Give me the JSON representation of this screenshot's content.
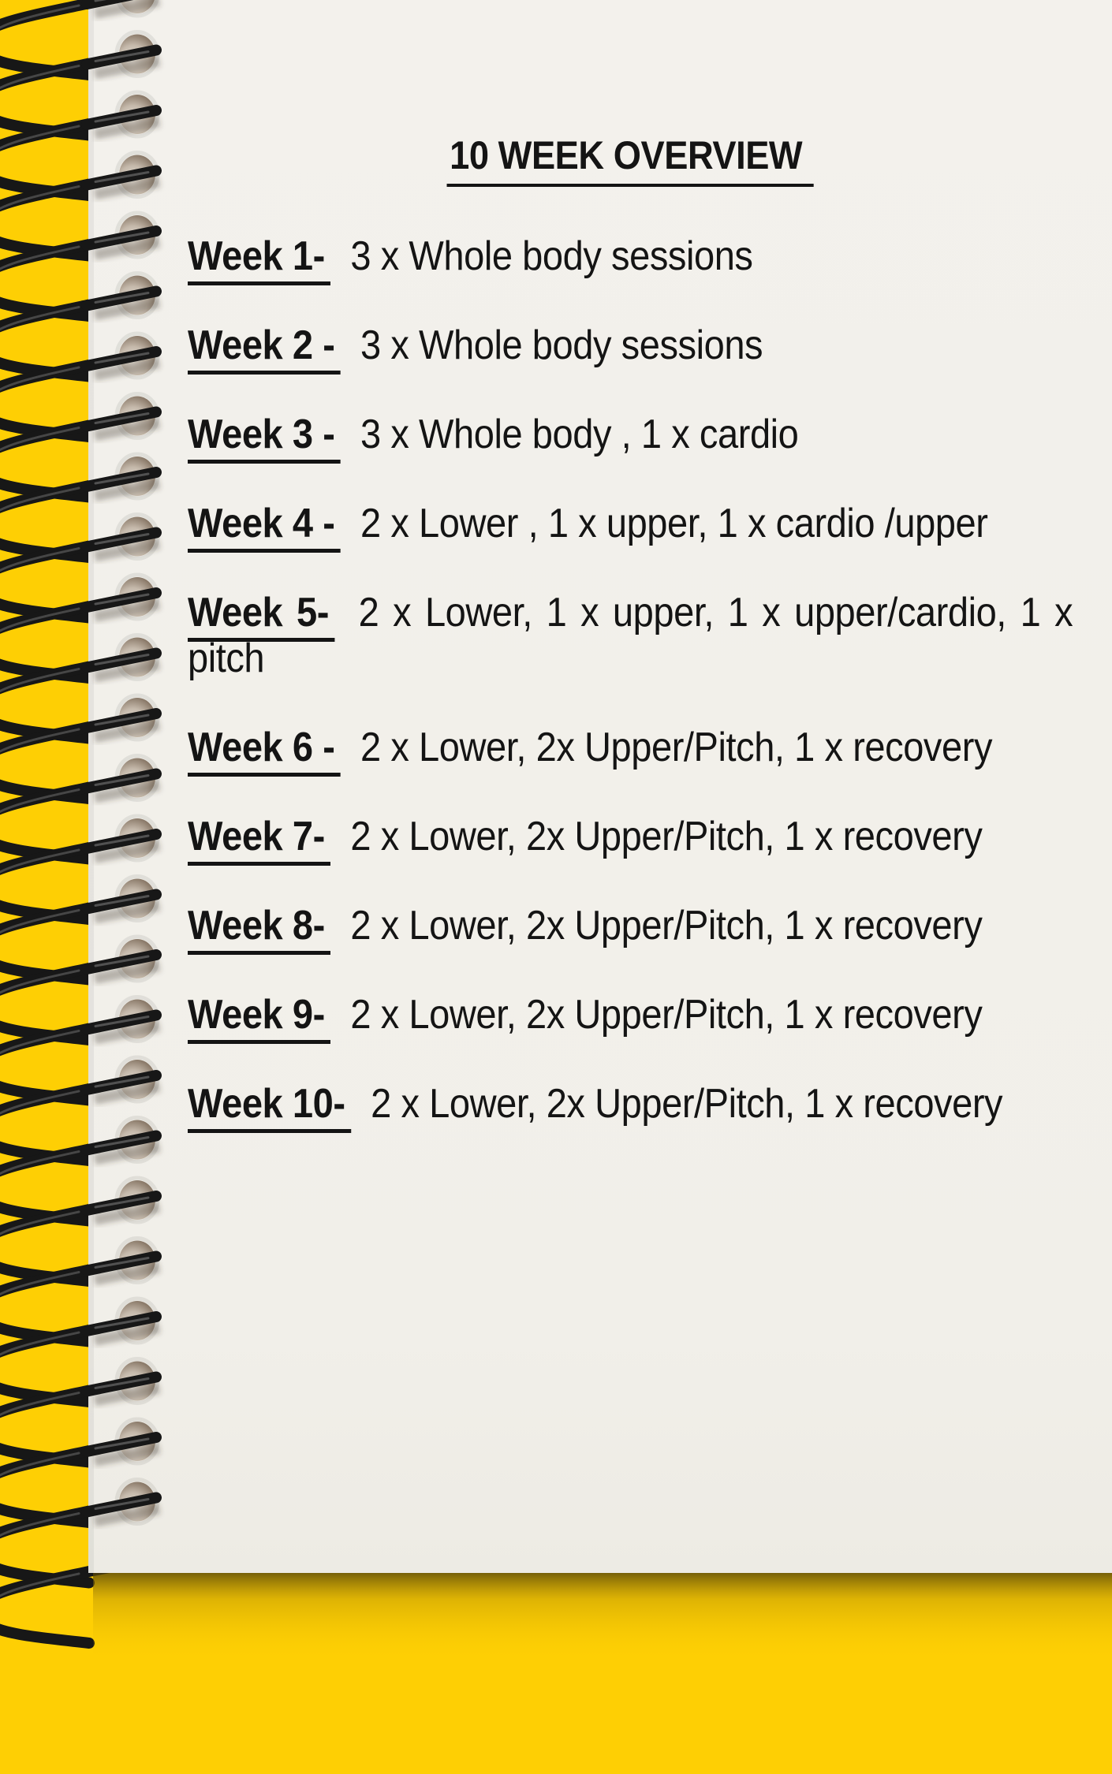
{
  "title": "10 WEEK OVERVIEW",
  "weeks": [
    {
      "label": "Week 1-",
      "desc": "3 x Whole body sessions"
    },
    {
      "label": "Week 2 -",
      "desc": "3 x Whole body sessions"
    },
    {
      "label": "Week 3 -",
      "desc": "3 x Whole body , 1 x cardio"
    },
    {
      "label": "Week 4 -",
      "desc": "2 x Lower , 1 x upper, 1 x cardio /upper"
    },
    {
      "label": "Week 5-",
      "desc": "2 x Lower, 1 x upper, 1 x upper/cardio, 1 x pitch"
    },
    {
      "label": "Week 6 -",
      "desc": "2 x Lower, 2x Upper/Pitch, 1 x recovery"
    },
    {
      "label": "Week 7-",
      "desc": "2 x Lower, 2x Upper/Pitch, 1 x recovery"
    },
    {
      "label": "Week 8-",
      "desc": "2 x Lower, 2x Upper/Pitch, 1 x recovery"
    },
    {
      "label": "Week 9-",
      "desc": "2 x Lower, 2x Upper/Pitch, 1 x recovery"
    },
    {
      "label": "Week 10-",
      "desc": "2 x Lower, 2x Upper/Pitch, 1 x recovery"
    }
  ],
  "colors": {
    "background_yellow": "#fecf04",
    "page_white": "#f2f0eb",
    "ink_black": "#141414",
    "wire_black": "#171717",
    "hole_shadow_brown": "#6a5c4e",
    "page_drop_shadow": "#50400a"
  }
}
